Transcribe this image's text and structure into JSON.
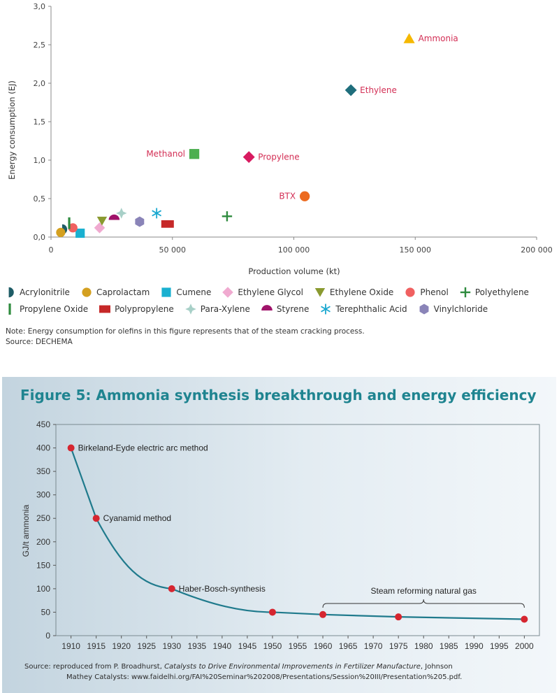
{
  "chart_data": [
    {
      "type": "scatter",
      "title": "",
      "xlabel": "Production volume (kt)",
      "ylabel": "Energy consumption (EJ)",
      "xlim": [
        0,
        200000
      ],
      "ylim": [
        0,
        3.0
      ],
      "x_ticks": [
        "0",
        "50 000",
        "100 000",
        "150 000",
        "200 000"
      ],
      "x_tick_values": [
        0,
        50000,
        100000,
        150000,
        200000
      ],
      "y_ticks": [
        "0,0",
        "0,5",
        "1,0",
        "1,5",
        "2,0",
        "2,5",
        "3,0"
      ],
      "y_tick_values": [
        0,
        0.5,
        1.0,
        1.5,
        2.0,
        2.5,
        3.0
      ],
      "grid": false,
      "legend_position": "bottom",
      "labeled_points": [
        {
          "label": "Ammonia",
          "x": 147500,
          "y": 2.58,
          "color": "#f5b800",
          "shape": "triangle",
          "label_side": "right"
        },
        {
          "label": "Ethylene",
          "x": 123500,
          "y": 1.91,
          "color": "#1f6e7c",
          "shape": "diamond",
          "label_side": "right"
        },
        {
          "label": "Methanol",
          "x": 59000,
          "y": 1.08,
          "color": "#4caf50",
          "shape": "square",
          "label_side": "left"
        },
        {
          "label": "Propylene",
          "x": 81500,
          "y": 1.04,
          "color": "#d81b60",
          "shape": "diamond",
          "label_side": "right"
        },
        {
          "label": "BTX",
          "x": 104500,
          "y": 0.53,
          "color": "#ec6a1f",
          "shape": "circle",
          "label_side": "left"
        }
      ],
      "series": [
        {
          "name": "Acrylonitrile",
          "x": 5000,
          "y": 0.1,
          "color": "#1e5c66",
          "shape": "halfcircle"
        },
        {
          "name": "Caprolactam",
          "x": 4000,
          "y": 0.06,
          "color": "#d4a020",
          "shape": "circle"
        },
        {
          "name": "Cumene",
          "x": 12000,
          "y": 0.05,
          "color": "#1ab0d0",
          "shape": "square"
        },
        {
          "name": "Ethylene Glycol",
          "x": 20000,
          "y": 0.12,
          "color": "#f0aad0",
          "shape": "diamond"
        },
        {
          "name": "Ethylene Oxide",
          "x": 21000,
          "y": 0.21,
          "color": "#8a9a30",
          "shape": "triangle-down"
        },
        {
          "name": "Phenol",
          "x": 9000,
          "y": 0.12,
          "color": "#f06060",
          "shape": "circle"
        },
        {
          "name": "Polyethylene",
          "x": 72500,
          "y": 0.27,
          "color": "#2e8b3e",
          "shape": "plus"
        },
        {
          "name": "Propylene Oxide",
          "x": 7500,
          "y": 0.18,
          "color": "#2e8b3e",
          "shape": "bar"
        },
        {
          "name": "Polypropylene",
          "x": 48000,
          "y": 0.17,
          "color": "#c62828",
          "shape": "rect"
        },
        {
          "name": "Para-Xylene",
          "x": 29000,
          "y": 0.31,
          "color": "#a8d0c8",
          "shape": "star4"
        },
        {
          "name": "Styrene",
          "x": 26000,
          "y": 0.24,
          "color": "#a0136a",
          "shape": "halfcircle-up"
        },
        {
          "name": "Terephthalic Acid",
          "x": 43500,
          "y": 0.31,
          "color": "#1aa8d0",
          "shape": "asterisk"
        },
        {
          "name": "Vinylchloride",
          "x": 36500,
          "y": 0.2,
          "color": "#8a84b8",
          "shape": "hexagon"
        }
      ]
    },
    {
      "type": "line",
      "title": "Figure 5: Ammonia synthesis breakthrough and energy efficiency",
      "xlabel": "",
      "ylabel": "GJ/t ammonia",
      "xlim": [
        1907,
        2003
      ],
      "ylim": [
        0,
        450
      ],
      "x_ticks": [
        "1910",
        "1915",
        "1920",
        "1925",
        "1930",
        "1935",
        "1940",
        "1945",
        "1950",
        "1955",
        "1960",
        "1965",
        "1970",
        "1975",
        "1980",
        "1985",
        "1990",
        "1995",
        "2000"
      ],
      "x_tick_values": [
        1910,
        1915,
        1920,
        1925,
        1930,
        1935,
        1940,
        1945,
        1950,
        1955,
        1960,
        1965,
        1970,
        1975,
        1980,
        1985,
        1990,
        1995,
        2000
      ],
      "y_ticks": [
        "0",
        "50",
        "100",
        "150",
        "200",
        "250",
        "300",
        "350",
        "400",
        "450"
      ],
      "y_tick_values": [
        0,
        50,
        100,
        150,
        200,
        250,
        300,
        350,
        400,
        450
      ],
      "line_color": "#1f7a8c",
      "marker_color": "#d62630",
      "x": [
        1910,
        1915,
        1930,
        1950,
        1960,
        1975,
        2000
      ],
      "values": [
        400,
        250,
        100,
        50,
        45,
        40,
        35
      ],
      "annotations": [
        {
          "text": "Birkeland-Eyde electric arc method",
          "x": 1910,
          "y": 400
        },
        {
          "text": "Cyanamid method",
          "x": 1915,
          "y": 250
        },
        {
          "text": "Haber-Bosch-synthesis",
          "x": 1930,
          "y": 100
        }
      ],
      "bracket": {
        "text": "Steam reforming natural gas",
        "x_start": 1960,
        "x_end": 2000
      }
    }
  ],
  "note": {
    "line1": "Note: Energy consumption for olefins in this figure represents that of the steam cracking process.",
    "line2": "Source: DECHEMA"
  },
  "source2": {
    "prefix": "Source: reproduced from P. Broadhurst, ",
    "italic": "Catalysts to Drive Environmental Improvements in Fertilizer Manufacture",
    "suffix": ", Johnson",
    "line2": "Mathey Catalysts: www.faidelhi.org/FAI%20Seminar%202008/Presentations/Session%20III/Presentation%205.pdf."
  }
}
